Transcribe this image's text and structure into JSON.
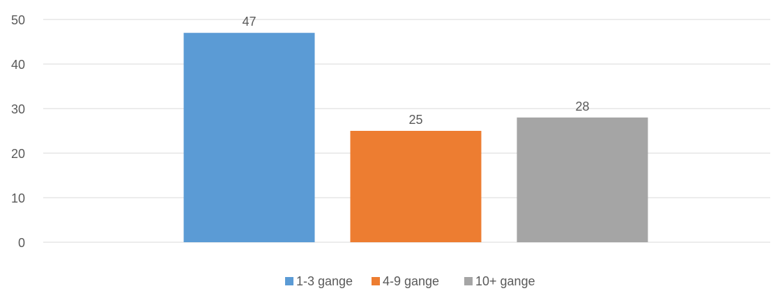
{
  "chart_data": {
    "type": "bar",
    "title": "",
    "xlabel": "",
    "ylabel": "",
    "categories": [
      ""
    ],
    "series": [
      {
        "name": "1-3 gange",
        "values": [
          47
        ],
        "color": "#5B9BD5"
      },
      {
        "name": "4-9 gange",
        "values": [
          25
        ],
        "color": "#ED7D31"
      },
      {
        "name": "10+ gange",
        "values": [
          28
        ],
        "color": "#A5A5A5"
      }
    ],
    "ylim": [
      0,
      50
    ],
    "yticks": [
      "0",
      "10",
      "20",
      "30",
      "40",
      "50"
    ],
    "grid": true,
    "data_labels": true,
    "legend_position": "bottom"
  },
  "colors": {
    "gridline": "#D9D9D9",
    "text": "#595959"
  }
}
